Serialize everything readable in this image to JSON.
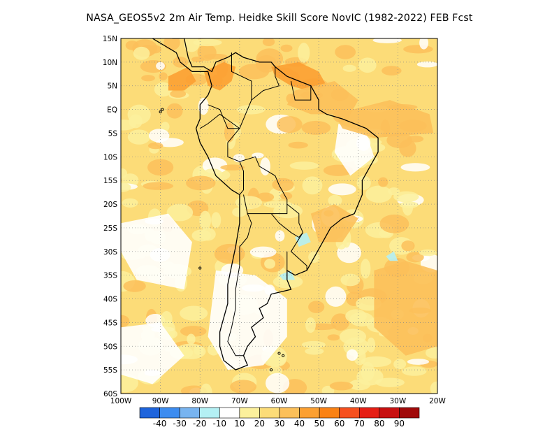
{
  "title": "NASA_GEOS5v2  2m Air Temp. Heidke Skill Score NovIC (1982-2022) FEB Fcst",
  "map": {
    "lon_range": [
      -100,
      -20
    ],
    "lat_range": [
      -60,
      15
    ],
    "lat_ticks": [
      {
        "value": 15,
        "label": "15N"
      },
      {
        "value": 10,
        "label": "10N"
      },
      {
        "value": 5,
        "label": "5N"
      },
      {
        "value": 0,
        "label": "EQ"
      },
      {
        "value": -5,
        "label": "5S"
      },
      {
        "value": -10,
        "label": "10S"
      },
      {
        "value": -15,
        "label": "15S"
      },
      {
        "value": -20,
        "label": "20S"
      },
      {
        "value": -25,
        "label": "25S"
      },
      {
        "value": -30,
        "label": "30S"
      },
      {
        "value": -35,
        "label": "35S"
      },
      {
        "value": -40,
        "label": "40S"
      },
      {
        "value": -45,
        "label": "45S"
      },
      {
        "value": -50,
        "label": "50S"
      },
      {
        "value": -55,
        "label": "55S"
      },
      {
        "value": -60,
        "label": "60S"
      }
    ],
    "lon_ticks": [
      {
        "value": -100,
        "label": "100W"
      },
      {
        "value": -90,
        "label": "90W"
      },
      {
        "value": -80,
        "label": "80W"
      },
      {
        "value": -70,
        "label": "70W"
      },
      {
        "value": -60,
        "label": "60W"
      },
      {
        "value": -50,
        "label": "50W"
      },
      {
        "value": -40,
        "label": "40W"
      },
      {
        "value": -30,
        "label": "30W"
      },
      {
        "value": -20,
        "label": "20W"
      }
    ],
    "grid": "dotted",
    "colorbar": {
      "colors": [
        "#1e64dc",
        "#3c8cf0",
        "#78b4f0",
        "#b4f0f4",
        "#ffffff",
        "#fcf09c",
        "#fcdc78",
        "#fcc05a",
        "#fca032",
        "#fa8214",
        "#f6501e",
        "#e61e14",
        "#c81010",
        "#a00a0a"
      ],
      "labels": [
        "-40",
        "-30",
        "-20",
        "-10",
        "10",
        "20",
        "30",
        "40",
        "50",
        "60",
        "70",
        "80",
        "90"
      ]
    },
    "field_regions": [
      {
        "level": 6,
        "name": "north-venezuela-guianas-core",
        "poly": [
          [
            -62,
            9
          ],
          [
            -55,
            10
          ],
          [
            -50,
            8
          ],
          [
            -48,
            5
          ],
          [
            -53,
            4
          ],
          [
            -57,
            5
          ],
          [
            -61,
            7
          ]
        ]
      },
      {
        "level": 6,
        "name": "colombia-core",
        "poly": [
          [
            -79,
            8
          ],
          [
            -74,
            10
          ],
          [
            -71,
            9
          ],
          [
            -72,
            6
          ],
          [
            -75,
            4
          ],
          [
            -78,
            5
          ]
        ]
      },
      {
        "level": 6,
        "name": "east-pacific-core",
        "poly": [
          [
            -88,
            7
          ],
          [
            -83,
            9
          ],
          [
            -81,
            6
          ],
          [
            -84,
            4
          ],
          [
            -88,
            4
          ]
        ]
      },
      {
        "level": 5,
        "name": "amazon-mouth",
        "poly": [
          [
            -56,
            4
          ],
          [
            -46,
            6
          ],
          [
            -40,
            2
          ],
          [
            -42,
            -1
          ],
          [
            -52,
            -1
          ],
          [
            -58,
            1
          ]
        ]
      },
      {
        "level": 5,
        "name": "atlantic-east-north",
        "poly": [
          [
            -46,
            -1
          ],
          [
            -32,
            2
          ],
          [
            -22,
            -1
          ],
          [
            -21,
            -5
          ],
          [
            -36,
            -6
          ],
          [
            -44,
            -4
          ]
        ]
      },
      {
        "level": 5,
        "name": "atlantic-south-east",
        "poly": [
          [
            -36,
            -34
          ],
          [
            -28,
            -32
          ],
          [
            -20,
            -34
          ],
          [
            -20,
            -50
          ],
          [
            -28,
            -52
          ],
          [
            -36,
            -46
          ]
        ]
      },
      {
        "level": 5,
        "name": "brazil-southeast",
        "poly": [
          [
            -52,
            -22
          ],
          [
            -46,
            -20
          ],
          [
            -40,
            -23
          ],
          [
            -44,
            -28
          ],
          [
            -50,
            -28
          ]
        ]
      }
    ],
    "light_regions": [
      {
        "level": 4,
        "name": "patagonia-white",
        "poly": [
          [
            -76,
            -34
          ],
          [
            -66,
            -35
          ],
          [
            -58,
            -40
          ],
          [
            -58,
            -48
          ],
          [
            -64,
            -54
          ],
          [
            -73,
            -55
          ],
          [
            -78,
            -48
          ]
        ]
      },
      {
        "level": 4,
        "name": "pacific-central-white",
        "poly": [
          [
            -100,
            -24
          ],
          [
            -88,
            -22
          ],
          [
            -82,
            -28
          ],
          [
            -84,
            -38
          ],
          [
            -96,
            -36
          ],
          [
            -100,
            -30
          ]
        ]
      },
      {
        "level": 4,
        "name": "ne-brazil-white",
        "poly": [
          [
            -45,
            -3
          ],
          [
            -38,
            -5
          ],
          [
            -36,
            -10
          ],
          [
            -42,
            -14
          ],
          [
            -46,
            -9
          ]
        ]
      },
      {
        "level": 4,
        "name": "pacific-south-white",
        "poly": [
          [
            -100,
            -46
          ],
          [
            -90,
            -45
          ],
          [
            -84,
            -52
          ],
          [
            -92,
            -58
          ],
          [
            -100,
            -56
          ]
        ]
      }
    ],
    "blue_spots": [
      {
        "level": 3,
        "name": "paraguay-blue",
        "poly": [
          [
            -56,
            -27
          ],
          [
            -53,
            -26
          ],
          [
            -52,
            -28
          ],
          [
            -55,
            -29
          ]
        ]
      },
      {
        "level": 3,
        "name": "atlantic-blue",
        "poly": [
          [
            -33,
            -31
          ],
          [
            -31,
            -30
          ],
          [
            -30,
            -32
          ],
          [
            -32,
            -32
          ]
        ]
      },
      {
        "level": 3,
        "name": "uruguay-blue",
        "poly": [
          [
            -60,
            -35
          ],
          [
            -57,
            -34
          ],
          [
            -56,
            -36
          ],
          [
            -59,
            -36
          ]
        ]
      }
    ],
    "coastline": [
      [
        -87,
        15
      ],
      [
        -84,
        15
      ],
      [
        -83,
        11
      ],
      [
        -82,
        9
      ],
      [
        -79,
        9
      ],
      [
        -77,
        8
      ],
      [
        -76,
        10
      ],
      [
        -73,
        11
      ],
      [
        -71,
        12
      ],
      [
        -69,
        11
      ],
      [
        -65,
        10
      ],
      [
        -62,
        10
      ],
      [
        -61,
        9
      ],
      [
        -58,
        7
      ],
      [
        -55,
        6
      ],
      [
        -52,
        5
      ],
      [
        -50,
        2
      ],
      [
        -50,
        0
      ],
      [
        -48,
        -1
      ],
      [
        -44,
        -2
      ],
      [
        -41,
        -3
      ],
      [
        -38,
        -4
      ],
      [
        -35,
        -6
      ],
      [
        -35,
        -9
      ],
      [
        -37,
        -12
      ],
      [
        -39,
        -15
      ],
      [
        -39,
        -18
      ],
      [
        -41,
        -22
      ],
      [
        -44,
        -23
      ],
      [
        -47,
        -25
      ],
      [
        -49,
        -28
      ],
      [
        -51,
        -31
      ],
      [
        -53,
        -34
      ],
      [
        -56,
        -35
      ],
      [
        -58,
        -34
      ],
      [
        -58,
        -36
      ],
      [
        -57,
        -38
      ],
      [
        -62,
        -39
      ],
      [
        -63,
        -41
      ],
      [
        -65,
        -42
      ],
      [
        -64,
        -44
      ],
      [
        -67,
        -46
      ],
      [
        -66,
        -48
      ],
      [
        -68,
        -50
      ],
      [
        -69,
        -52
      ],
      [
        -68,
        -54
      ],
      [
        -71,
        -55
      ],
      [
        -74,
        -53
      ],
      [
        -75,
        -50
      ],
      [
        -75,
        -47
      ],
      [
        -74,
        -44
      ],
      [
        -73,
        -41
      ],
      [
        -73,
        -37
      ],
      [
        -72,
        -33
      ],
      [
        -71,
        -29
      ],
      [
        -70,
        -24
      ],
      [
        -70,
        -18
      ],
      [
        -72,
        -17
      ],
      [
        -76,
        -14
      ],
      [
        -78,
        -10
      ],
      [
        -80,
        -7
      ],
      [
        -81,
        -4
      ],
      [
        -80,
        -2
      ],
      [
        -80,
        1
      ],
      [
        -78,
        3
      ],
      [
        -77,
        5
      ],
      [
        -78,
        8
      ],
      [
        -80,
        8
      ],
      [
        -82,
        8
      ],
      [
        -85,
        10
      ],
      [
        -86,
        12
      ],
      [
        -88,
        13
      ],
      [
        -90,
        14
      ],
      [
        -92,
        15
      ]
    ],
    "borders": [
      [
        [
          -72,
          12
        ],
        [
          -72,
          8
        ],
        [
          -67,
          6
        ],
        [
          -67,
          2
        ],
        [
          -70,
          -4
        ],
        [
          -73,
          -4
        ],
        [
          -75,
          0
        ],
        [
          -78,
          1
        ]
      ],
      [
        [
          -61,
          9
        ],
        [
          -61,
          7
        ],
        [
          -60,
          5
        ],
        [
          -64,
          4
        ],
        [
          -67,
          2
        ]
      ],
      [
        [
          -57,
          6
        ],
        [
          -56,
          2
        ],
        [
          -52,
          2
        ],
        [
          -52,
          5
        ]
      ],
      [
        [
          -80,
          -4
        ],
        [
          -78,
          -3
        ],
        [
          -75,
          -1
        ],
        [
          -70,
          -4
        ],
        [
          -73,
          -7
        ],
        [
          -73,
          -10
        ],
        [
          -70,
          -11
        ],
        [
          -69,
          -13
        ],
        [
          -69,
          -17
        ],
        [
          -70,
          -18
        ]
      ],
      [
        [
          -70,
          -11
        ],
        [
          -66,
          -10
        ],
        [
          -65,
          -12
        ],
        [
          -61,
          -14
        ],
        [
          -60,
          -16
        ],
        [
          -58,
          -19
        ],
        [
          -58,
          -22
        ],
        [
          -62,
          -22
        ],
        [
          -65,
          -22
        ],
        [
          -68,
          -22
        ],
        [
          -69,
          -18
        ]
      ],
      [
        [
          -68,
          -22
        ],
        [
          -67,
          -24
        ],
        [
          -68,
          -27
        ],
        [
          -70,
          -29
        ],
        [
          -70,
          -33
        ],
        [
          -71,
          -38
        ],
        [
          -71,
          -42
        ],
        [
          -72,
          -46
        ],
        [
          -73,
          -49
        ],
        [
          -71,
          -52
        ],
        [
          -69,
          -52
        ]
      ],
      [
        [
          -62,
          -22
        ],
        [
          -60,
          -24
        ],
        [
          -57,
          -26
        ],
        [
          -55,
          -27
        ],
        [
          -54,
          -26
        ],
        [
          -55,
          -24
        ],
        [
          -55,
          -22
        ],
        [
          -58,
          -20
        ]
      ],
      [
        [
          -54,
          -26
        ],
        [
          -57,
          -30
        ],
        [
          -53,
          -33
        ],
        [
          -53,
          -34
        ]
      ],
      [
        [
          -58,
          -30
        ],
        [
          -58,
          -34
        ]
      ]
    ]
  }
}
